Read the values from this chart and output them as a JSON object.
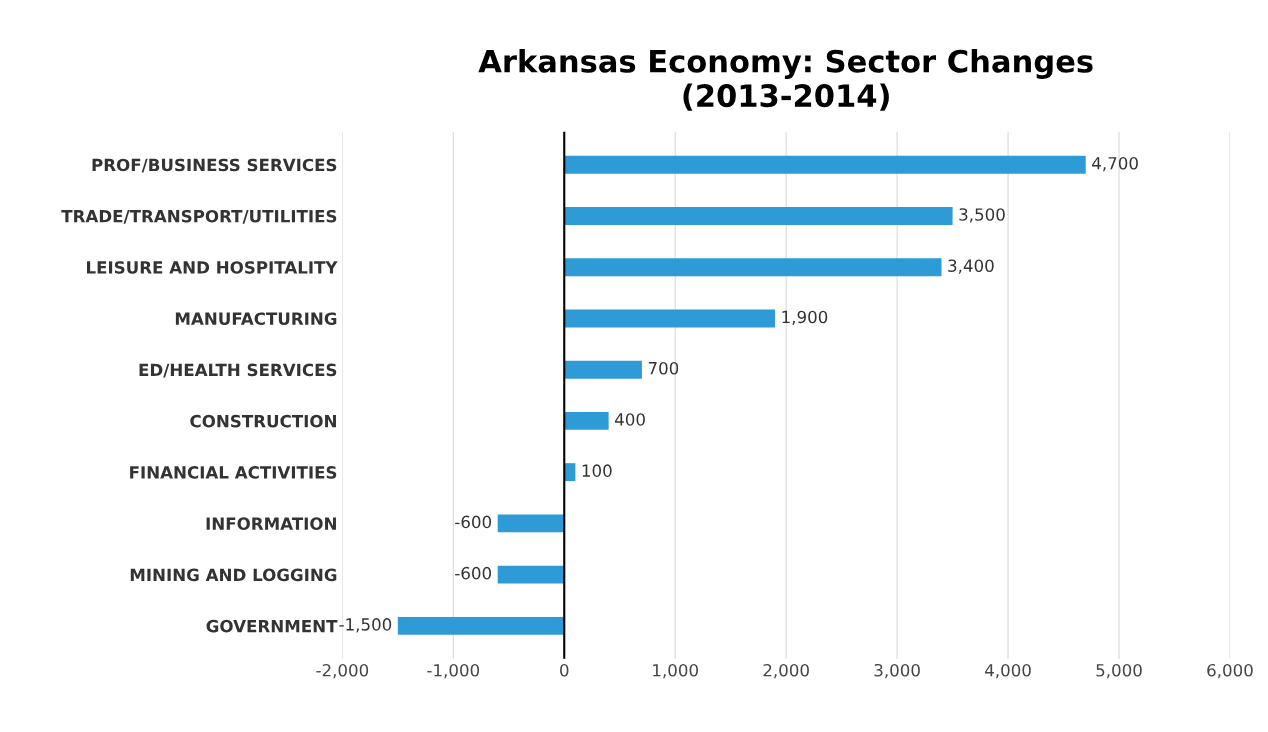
{
  "chart_data": {
    "type": "bar",
    "orientation": "horizontal",
    "title": "Arkansas Economy: Sector Changes\n(2013-2014)",
    "categories": [
      "PROF/BUSINESS SERVICES",
      "TRADE/TRANSPORT/UTILITIES",
      "LEISURE AND HOSPITALITY",
      "MANUFACTURING",
      "ED/HEALTH SERVICES",
      "CONSTRUCTION",
      "FINANCIAL ACTIVITIES",
      "INFORMATION",
      "MINING AND LOGGING",
      "GOVERNMENT"
    ],
    "values": [
      4700,
      3500,
      3400,
      1900,
      700,
      400,
      100,
      -600,
      -600,
      -1500
    ],
    "value_labels": [
      "4,700",
      "3,500",
      "3,400",
      "1,900",
      "700",
      "400",
      "100",
      "-600",
      "-600",
      "-1,500"
    ],
    "color": "#2e9ad6",
    "xlim": [
      -2000,
      6000
    ],
    "xticks": [
      {
        "value": -2000,
        "label": "-2,000"
      },
      {
        "value": -1000,
        "label": "-1,000"
      },
      0,
      {
        "value": 1000,
        "label": "1,000"
      },
      {
        "value": 2000,
        "label": "2,000"
      },
      {
        "value": 3000,
        "label": "3,000"
      },
      {
        "value": 4000,
        "label": "4,000"
      },
      {
        "value": 5000,
        "label": "5,000"
      },
      {
        "value": 6000,
        "label": "6,000"
      }
    ],
    "grid": "x"
  }
}
